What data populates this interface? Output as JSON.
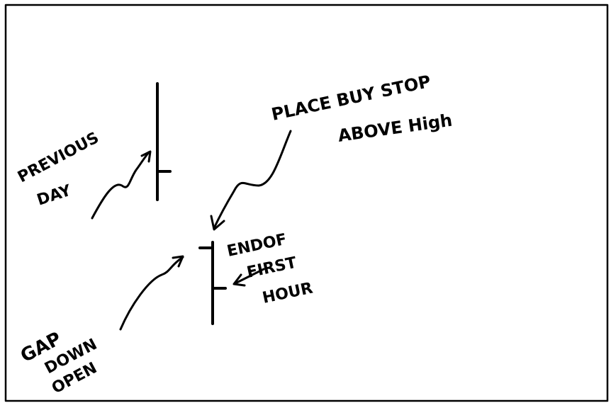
{
  "labels": [
    {
      "lines": [
        "PREVIOUS",
        "DAY"
      ]
    },
    {
      "lines": [
        "PLACE BUY STOP",
        "ABOVE High"
      ]
    },
    {
      "lines": [
        "ENDOF",
        "FIRST",
        "HOUR"
      ]
    },
    {
      "lines": [
        "GAP",
        "DOWN",
        "OPEN"
      ]
    }
  ]
}
